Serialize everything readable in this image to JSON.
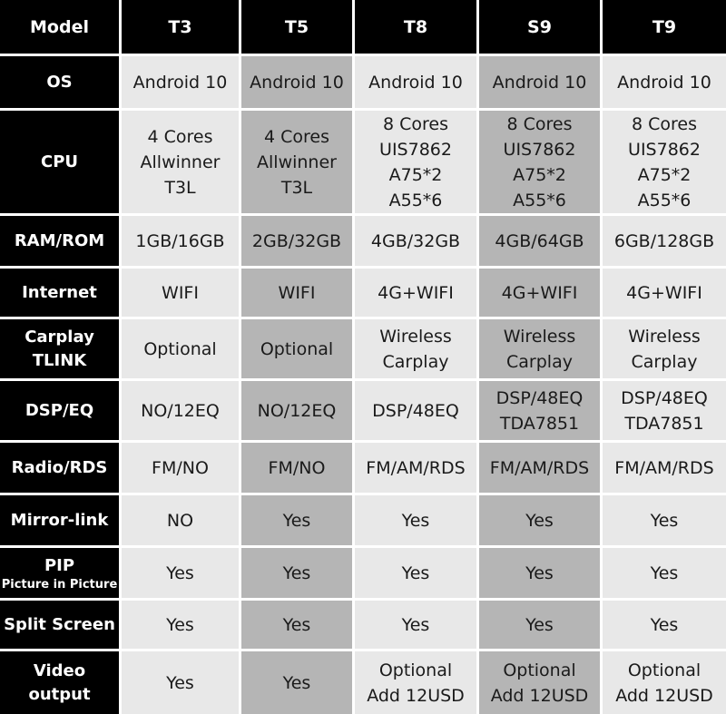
{
  "table": {
    "header": [
      "Model",
      "T3",
      "T5",
      "T8",
      "S9",
      "T9"
    ],
    "rows": [
      {
        "label": "OS",
        "cells": [
          "Android 10",
          "Android 10",
          "Android 10",
          "Android 10",
          "Android 10"
        ]
      },
      {
        "label": "CPU",
        "cells": [
          "4 Cores\nAllwinner\nT3L",
          "4 Cores\nAllwinner\nT3L",
          "8 Cores\nUIS7862\nA75*2\nA55*6",
          "8 Cores\nUIS7862\nA75*2\nA55*6",
          "8 Cores\nUIS7862\nA75*2\nA55*6"
        ]
      },
      {
        "label": "RAM/ROM",
        "cells": [
          "1GB/16GB",
          "2GB/32GB",
          "4GB/32GB",
          "4GB/64GB",
          "6GB/128GB"
        ]
      },
      {
        "label": "Internet",
        "cells": [
          "WIFI",
          "WIFI",
          "4G+WIFI",
          "4G+WIFI",
          "4G+WIFI"
        ]
      },
      {
        "label": "Carplay\nTLINK",
        "cells": [
          "Optional",
          "Optional",
          "Wireless\nCarplay",
          "Wireless\nCarplay",
          "Wireless\nCarplay"
        ]
      },
      {
        "label": "DSP/EQ",
        "cells": [
          "NO/12EQ",
          "NO/12EQ",
          "DSP/48EQ",
          "DSP/48EQ\nTDA7851",
          "DSP/48EQ\nTDA7851"
        ]
      },
      {
        "label": "Radio/RDS",
        "cells": [
          "FM/NO",
          "FM/NO",
          "FM/AM/RDS",
          "FM/AM/RDS",
          "FM/AM/RDS"
        ]
      },
      {
        "label": "Mirror-link",
        "cells": [
          "NO",
          "Yes",
          "Yes",
          "Yes",
          "Yes"
        ]
      },
      {
        "label": "PIP",
        "sublabel": "Picture in Picture",
        "cells": [
          "Yes",
          "Yes",
          "Yes",
          "Yes",
          "Yes"
        ]
      },
      {
        "label": "Split Screen",
        "cells": [
          "Yes",
          "Yes",
          "Yes",
          "Yes",
          "Yes"
        ]
      },
      {
        "label": "Video\noutput",
        "cells": [
          "Yes",
          "Yes",
          "Optional\nAdd 12USD",
          "Optional\nAdd 12USD",
          "Optional\nAdd 12USD"
        ]
      }
    ]
  }
}
